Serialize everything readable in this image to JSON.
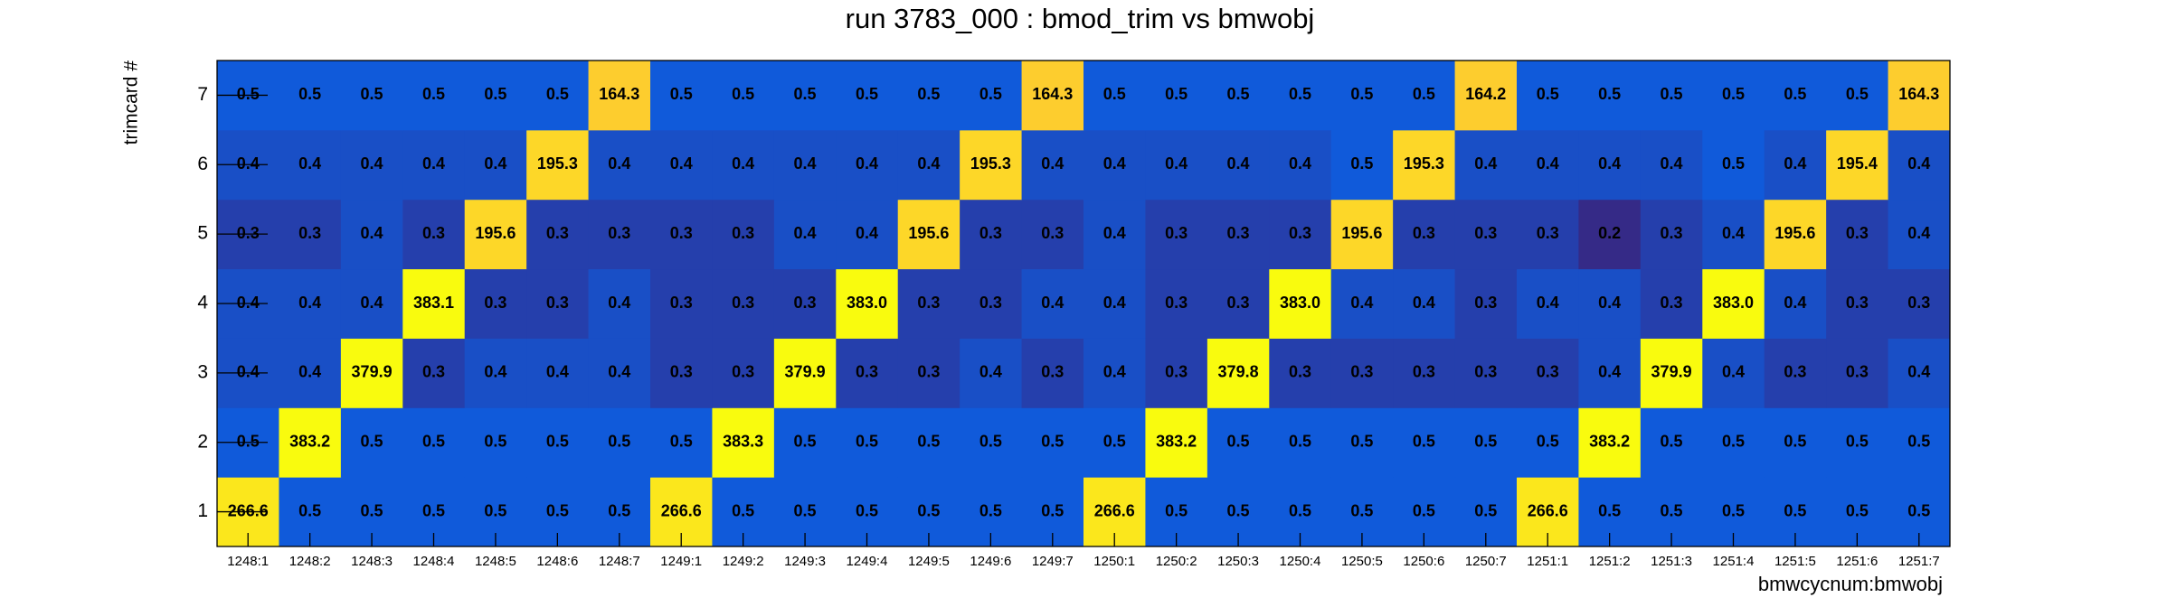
{
  "chart_data": {
    "type": "heatmap",
    "title": "run 3783_000 : bmod_trim vs bmwobj",
    "x_label": "bmwcycnum:bmwobj",
    "y_label": "trimcard #",
    "log_z": true,
    "categories": [
      "1248:1",
      "1248:2",
      "1248:3",
      "1248:4",
      "1248:5",
      "1248:6",
      "1248:7",
      "1249:1",
      "1249:2",
      "1249:3",
      "1249:4",
      "1249:5",
      "1249:6",
      "1249:7",
      "1250:1",
      "1250:2",
      "1250:3",
      "1250:4",
      "1250:5",
      "1250:6",
      "1250:7",
      "1251:1",
      "1251:2",
      "1251:3",
      "1251:4",
      "1251:5",
      "1251:6",
      "1251:7"
    ],
    "y_categories": [
      1,
      2,
      3,
      4,
      5,
      6,
      7
    ],
    "values": [
      [
        266.6,
        0.5,
        0.5,
        0.5,
        0.5,
        0.5,
        0.5,
        266.6,
        0.5,
        0.5,
        0.5,
        0.5,
        0.5,
        0.5,
        266.6,
        0.5,
        0.5,
        0.5,
        0.5,
        0.5,
        0.5,
        266.6,
        0.5,
        0.5,
        0.5,
        0.5,
        0.5,
        0.5
      ],
      [
        0.5,
        383.2,
        0.5,
        0.5,
        0.5,
        0.5,
        0.5,
        0.5,
        383.3,
        0.5,
        0.5,
        0.5,
        0.5,
        0.5,
        0.5,
        383.2,
        0.5,
        0.5,
        0.5,
        0.5,
        0.5,
        0.5,
        383.2,
        0.5,
        0.5,
        0.5,
        0.5,
        0.5
      ],
      [
        0.4,
        0.4,
        379.9,
        0.3,
        0.4,
        0.4,
        0.4,
        0.3,
        0.3,
        379.9,
        0.3,
        0.3,
        0.4,
        0.3,
        0.4,
        0.3,
        379.8,
        0.3,
        0.3,
        0.3,
        0.3,
        0.3,
        0.4,
        379.9,
        0.4,
        0.3,
        0.3,
        0.4
      ],
      [
        0.4,
        0.4,
        0.4,
        383.1,
        0.3,
        0.3,
        0.4,
        0.3,
        0.3,
        0.3,
        383.0,
        0.3,
        0.3,
        0.4,
        0.4,
        0.3,
        0.3,
        383.0,
        0.4,
        0.4,
        0.3,
        0.4,
        0.4,
        0.3,
        383.0,
        0.4,
        0.3,
        0.3
      ],
      [
        0.3,
        0.3,
        0.4,
        0.3,
        195.6,
        0.3,
        0.3,
        0.3,
        0.3,
        0.4,
        0.4,
        195.6,
        0.3,
        0.3,
        0.4,
        0.3,
        0.3,
        0.3,
        195.6,
        0.3,
        0.3,
        0.3,
        0.2,
        0.3,
        0.4,
        195.6,
        0.3,
        0.4
      ],
      [
        0.4,
        0.4,
        0.4,
        0.4,
        0.4,
        195.3,
        0.4,
        0.4,
        0.4,
        0.4,
        0.4,
        0.4,
        195.3,
        0.4,
        0.4,
        0.4,
        0.4,
        0.4,
        0.5,
        195.3,
        0.4,
        0.4,
        0.4,
        0.4,
        0.5,
        0.4,
        195.4,
        0.4
      ],
      [
        0.5,
        0.5,
        0.5,
        0.5,
        0.5,
        0.5,
        164.3,
        0.5,
        0.5,
        0.5,
        0.5,
        0.5,
        0.5,
        164.3,
        0.5,
        0.5,
        0.5,
        0.5,
        0.5,
        0.5,
        164.2,
        0.5,
        0.5,
        0.5,
        0.5,
        0.5,
        0.5,
        164.3
      ]
    ],
    "value_labels": [
      [
        "266.6",
        "0.5",
        "0.5",
        "0.5",
        "0.5",
        "0.5",
        "0.5",
        "266.6",
        "0.5",
        "0.5",
        "0.5",
        "0.5",
        "0.5",
        "0.5",
        "266.6",
        "0.5",
        "0.5",
        "0.5",
        "0.5",
        "0.5",
        "0.5",
        "266.6",
        "0.5",
        "0.5",
        "0.5",
        "0.5",
        "0.5",
        "0.5"
      ],
      [
        "0.5",
        "383.2",
        "0.5",
        "0.5",
        "0.5",
        "0.5",
        "0.5",
        "0.5",
        "383.3",
        "0.5",
        "0.5",
        "0.5",
        "0.5",
        "0.5",
        "0.5",
        "383.2",
        "0.5",
        "0.5",
        "0.5",
        "0.5",
        "0.5",
        "0.5",
        "383.2",
        "0.5",
        "0.5",
        "0.5",
        "0.5",
        "0.5"
      ],
      [
        "0.4",
        "0.4",
        "379.9",
        "0.3",
        "0.4",
        "0.4",
        "0.4",
        "0.3",
        "0.3",
        "379.9",
        "0.3",
        "0.3",
        "0.4",
        "0.3",
        "0.4",
        "0.3",
        "379.8",
        "0.3",
        "0.3",
        "0.3",
        "0.3",
        "0.3",
        "0.4",
        "379.9",
        "0.4",
        "0.3",
        "0.3",
        "0.4"
      ],
      [
        "0.4",
        "0.4",
        "0.4",
        "383.1",
        "0.3",
        "0.3",
        "0.4",
        "0.3",
        "0.3",
        "0.3",
        "383.0",
        "0.3",
        "0.3",
        "0.4",
        "0.4",
        "0.3",
        "0.3",
        "383.0",
        "0.4",
        "0.4",
        "0.3",
        "0.4",
        "0.4",
        "0.3",
        "383.0",
        "0.4",
        "0.3",
        "0.3"
      ],
      [
        "0.3",
        "0.3",
        "0.4",
        "0.3",
        "195.6",
        "0.3",
        "0.3",
        "0.3",
        "0.3",
        "0.4",
        "0.4",
        "195.6",
        "0.3",
        "0.3",
        "0.4",
        "0.3",
        "0.3",
        "0.3",
        "195.6",
        "0.3",
        "0.3",
        "0.3",
        "0.2",
        "0.3",
        "0.4",
        "195.6",
        "0.3",
        "0.4"
      ],
      [
        "0.4",
        "0.4",
        "0.4",
        "0.4",
        "0.4",
        "195.3",
        "0.4",
        "0.4",
        "0.4",
        "0.4",
        "0.4",
        "0.4",
        "195.3",
        "0.4",
        "0.4",
        "0.4",
        "0.4",
        "0.4",
        "0.5",
        "195.3",
        "0.4",
        "0.4",
        "0.4",
        "0.4",
        "0.5",
        "0.4",
        "195.4",
        "0.4"
      ],
      [
        "0.5",
        "0.5",
        "0.5",
        "0.5",
        "0.5",
        "0.5",
        "164.3",
        "0.5",
        "0.5",
        "0.5",
        "0.5",
        "0.5",
        "0.5",
        "164.3",
        "0.5",
        "0.5",
        "0.5",
        "0.5",
        "0.5",
        "0.5",
        "164.2",
        "0.5",
        "0.5",
        "0.5",
        "0.5",
        "0.5",
        "0.5",
        "164.3"
      ]
    ]
  }
}
